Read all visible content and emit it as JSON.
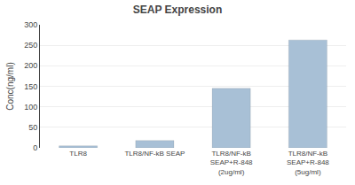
{
  "chart_data": {
    "type": "bar",
    "title": "SEAP Expression",
    "ylabel": "Conc(ng/ml)",
    "categories": [
      "TLR8",
      "TLR8/NF-kB SEAP",
      "TLR8/NF-kB\nSEAP+R-848\n(2ug/ml)",
      "TLR8/NF-kB\nSEAP+R-848\n(5ug/ml)"
    ],
    "values": [
      5,
      18,
      145,
      263
    ],
    "color": "#a8c0d6",
    "ylim": [
      0,
      300
    ],
    "yticks": [
      0,
      50,
      100,
      150,
      200,
      250,
      300
    ],
    "grid": true
  }
}
